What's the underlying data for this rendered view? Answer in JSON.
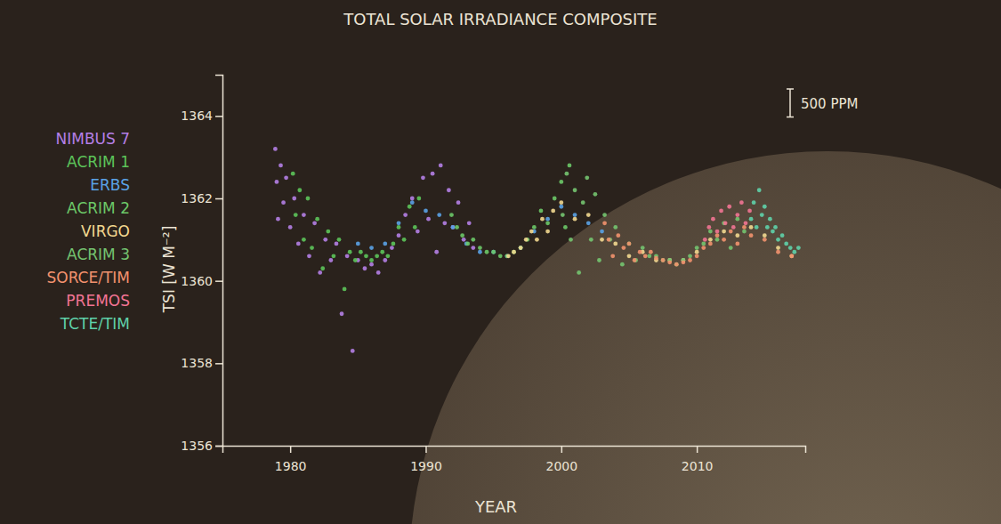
{
  "chart_data": {
    "type": "scatter",
    "title": "TOTAL SOLAR IRRADIANCE COMPOSITE",
    "x_label": "YEAR",
    "y_label": "TSI [W M⁻²]",
    "xlim": [
      1975,
      2018
    ],
    "xticks": [
      1980,
      1990,
      2000,
      2010
    ],
    "ylim": [
      1356,
      1365
    ],
    "yticks": [
      1356,
      1358,
      1360,
      1362,
      1364
    ],
    "legend": "left",
    "marker": "dot",
    "annotations": [
      {
        "text": "500 PPM",
        "size": 0.68
      }
    ],
    "series": [
      {
        "name": "NIMBUS 7",
        "color": "#b47fe6",
        "x": [
          1978.9,
          1979.0,
          1979.1,
          1979.3,
          1979.5,
          1979.7,
          1980.0,
          1980.3,
          1980.6,
          1981.0,
          1981.4,
          1981.8,
          1982.2,
          1982.6,
          1983.0,
          1983.4,
          1983.8,
          1984.2,
          1984.6,
          1985.0,
          1985.5,
          1986.0,
          1986.5,
          1987.0,
          1987.5,
          1988.0,
          1988.5,
          1989.0,
          1989.4,
          1989.8,
          1990.2,
          1990.5,
          1990.8,
          1991.1,
          1991.4,
          1991.7,
          1992.0,
          1992.4,
          1992.8,
          1993.2,
          1993.5
        ],
        "values": [
          1363.2,
          1362.4,
          1361.5,
          1362.8,
          1361.9,
          1362.5,
          1361.3,
          1362.0,
          1360.9,
          1361.6,
          1360.6,
          1361.4,
          1360.2,
          1361.0,
          1360.5,
          1360.9,
          1359.2,
          1360.6,
          1358.3,
          1360.5,
          1360.3,
          1360.4,
          1360.2,
          1360.5,
          1360.8,
          1361.1,
          1361.6,
          1362.0,
          1361.2,
          1362.5,
          1361.5,
          1362.6,
          1360.7,
          1362.8,
          1361.4,
          1362.2,
          1361.3,
          1361.9,
          1361.0,
          1361.4,
          1360.8
        ]
      },
      {
        "name": "ACRIM 1",
        "color": "#5cc45a",
        "x": [
          1980.2,
          1980.4,
          1980.7,
          1981.0,
          1981.3,
          1981.6,
          1982.0,
          1982.4,
          1982.8,
          1983.2,
          1983.6,
          1984.0,
          1984.4,
          1984.8,
          1985.2,
          1985.6,
          1986.0,
          1986.4,
          1986.8,
          1987.2,
          1987.6,
          1988.0,
          1988.4,
          1988.8,
          1989.2,
          1989.5
        ],
        "values": [
          1362.6,
          1361.6,
          1362.2,
          1361.0,
          1362.0,
          1360.8,
          1361.5,
          1360.3,
          1361.2,
          1360.6,
          1361.0,
          1359.8,
          1360.7,
          1360.5,
          1360.7,
          1360.6,
          1360.5,
          1360.6,
          1360.7,
          1360.6,
          1360.9,
          1361.3,
          1361.0,
          1361.8,
          1361.3,
          1362.0
        ]
      },
      {
        "name": "ERBS",
        "color": "#5aa2e6",
        "x": [
          1985.0,
          1986.0,
          1987.0,
          1988.0,
          1989.0,
          1990.0,
          1991.0,
          1992.0,
          1993.0,
          1994.0,
          1995.0,
          1996.0,
          1997.0,
          1998.0,
          1999.0,
          2000.0,
          2001.0,
          2002.0,
          2003.0
        ],
        "values": [
          1360.9,
          1360.8,
          1360.9,
          1361.4,
          1361.9,
          1361.7,
          1361.6,
          1361.3,
          1360.9,
          1360.7,
          1360.7,
          1360.6,
          1360.8,
          1361.2,
          1361.5,
          1361.8,
          1361.6,
          1361.4,
          1361.2
        ]
      },
      {
        "name": "ACRIM 2",
        "color": "#6cc868",
        "x": [
          1991.9,
          1992.3,
          1992.7,
          1993.1,
          1993.5,
          1994.0,
          1994.5,
          1995.0,
          1995.5,
          1996.0,
          1996.5,
          1997.0,
          1997.5,
          1998.0,
          1998.5,
          1999.0,
          1999.5,
          2000.0,
          2000.3,
          2000.6
        ],
        "values": [
          1361.6,
          1361.3,
          1361.1,
          1360.9,
          1361.0,
          1360.8,
          1360.7,
          1360.7,
          1360.6,
          1360.6,
          1360.7,
          1360.8,
          1361.0,
          1361.3,
          1361.7,
          1361.4,
          1362.0,
          1362.4,
          1361.3,
          1362.8
        ]
      },
      {
        "name": "VIRGO",
        "color": "#f2d890",
        "x": [
          1996.1,
          1996.5,
          1997.0,
          1997.4,
          1997.8,
          1998.2,
          1998.6,
          1999.0,
          1999.4,
          2000.0,
          2001.0,
          2002.0,
          2003.0,
          2004.0,
          2005.0,
          2006.0,
          2007.0,
          2008.0,
          2009.0,
          2010.0,
          2011.0,
          2012.0,
          2013.0,
          2014.0,
          2015.0,
          2016.0,
          2017.0
        ],
        "values": [
          1360.6,
          1360.7,
          1360.8,
          1361.0,
          1361.2,
          1361.0,
          1361.5,
          1361.2,
          1361.7,
          1361.9,
          1361.5,
          1361.6,
          1361.0,
          1360.9,
          1360.6,
          1360.7,
          1360.5,
          1360.5,
          1360.5,
          1360.7,
          1361.0,
          1361.2,
          1361.1,
          1361.3,
          1361.1,
          1360.8,
          1360.6
        ]
      },
      {
        "name": "ACRIM 3",
        "color": "#74c470",
        "x": [
          2000.1,
          2000.4,
          2000.7,
          2001.0,
          2001.3,
          2001.6,
          2001.9,
          2002.2,
          2002.5,
          2002.8,
          2003.2,
          2003.6,
          2004.0,
          2004.5,
          2005.0,
          2005.5,
          2006.0,
          2006.5,
          2007.0,
          2007.5,
          2008.0,
          2008.5,
          2009.0,
          2009.5,
          2010.0,
          2010.5,
          2011.0,
          2011.5,
          2012.0,
          2012.5,
          2013.0,
          2013.5
        ],
        "values": [
          1361.6,
          1362.6,
          1361.0,
          1362.2,
          1360.2,
          1361.9,
          1362.5,
          1361.0,
          1362.1,
          1360.5,
          1361.6,
          1361.0,
          1361.3,
          1360.4,
          1360.9,
          1360.5,
          1360.8,
          1360.6,
          1360.6,
          1360.5,
          1360.5,
          1360.4,
          1360.5,
          1360.6,
          1360.8,
          1360.9,
          1361.2,
          1361.0,
          1361.4,
          1360.8,
          1361.5,
          1361.2
        ]
      },
      {
        "name": "SORCE/TIM",
        "color": "#f2926e",
        "x": [
          2003.2,
          2003.5,
          2003.8,
          2004.2,
          2004.6,
          2005.0,
          2005.4,
          2005.8,
          2006.2,
          2006.6,
          2007.0,
          2007.5,
          2008.0,
          2008.5,
          2009.0,
          2009.5,
          2010.0,
          2010.5,
          2011.0,
          2011.5,
          2012.0,
          2012.5,
          2013.0,
          2013.5,
          2014.0,
          2015.0,
          2016.0,
          2017.0
        ],
        "values": [
          1361.4,
          1361.0,
          1360.6,
          1361.1,
          1360.8,
          1360.9,
          1360.5,
          1360.7,
          1360.6,
          1360.7,
          1360.55,
          1360.5,
          1360.45,
          1360.4,
          1360.45,
          1360.5,
          1360.6,
          1360.8,
          1360.9,
          1361.1,
          1361.0,
          1361.2,
          1360.9,
          1361.3,
          1361.1,
          1361.0,
          1360.7,
          1360.6
        ]
      },
      {
        "name": "PREMOS",
        "color": "#f27494",
        "x": [
          2010.6,
          2010.9,
          2011.2,
          2011.5,
          2011.8,
          2012.1,
          2012.4,
          2012.7,
          2013.0,
          2013.3,
          2013.6,
          2013.9
        ],
        "values": [
          1361.0,
          1361.3,
          1361.5,
          1361.2,
          1361.7,
          1361.4,
          1361.8,
          1361.3,
          1361.6,
          1361.9,
          1361.4,
          1361.7
        ]
      },
      {
        "name": "TCTE/TIM",
        "color": "#5fd2aa",
        "x": [
          2014.0,
          2014.2,
          2014.4,
          2014.6,
          2014.8,
          2015.0,
          2015.2,
          2015.4,
          2015.6,
          2015.8,
          2016.0,
          2016.3,
          2016.6,
          2016.9,
          2017.2,
          2017.5
        ],
        "values": [
          1361.5,
          1361.9,
          1361.3,
          1362.2,
          1361.6,
          1361.8,
          1361.3,
          1361.5,
          1361.2,
          1361.3,
          1361.0,
          1361.1,
          1360.9,
          1360.8,
          1360.7,
          1360.8
        ]
      }
    ]
  }
}
